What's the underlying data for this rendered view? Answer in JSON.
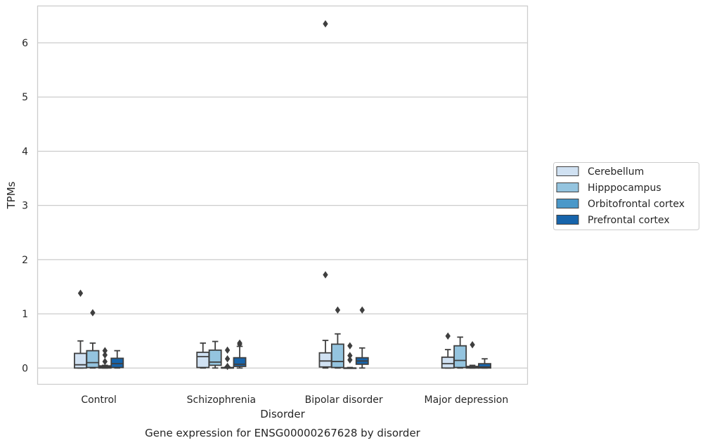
{
  "chart_data": {
    "type": "box",
    "caption": "Gene expression for ENSG00000267628 by disorder",
    "xlabel": "Disorder",
    "ylabel": "TPMs",
    "ylim": [
      -0.3,
      6.68
    ],
    "yticks": [
      0,
      1,
      2,
      3,
      4,
      5,
      6
    ],
    "grid": "horizontal",
    "legend_position": "right",
    "categories": [
      "Control",
      "Schizophrenia",
      "Bipolar disorder",
      "Major depression"
    ],
    "series": [
      {
        "name": "Cerebellum",
        "color": "#d0e1f2",
        "boxes": [
          {
            "whislo": 0.0,
            "q1": 0.0,
            "med": 0.06,
            "q3": 0.27,
            "whishi": 0.5,
            "fliers": [
              1.38
            ]
          },
          {
            "whislo": 0.0,
            "q1": 0.01,
            "med": 0.21,
            "q3": 0.29,
            "whishi": 0.46,
            "fliers": []
          },
          {
            "whislo": 0.0,
            "q1": 0.02,
            "med": 0.13,
            "q3": 0.28,
            "whishi": 0.51,
            "fliers": [
              1.72,
              6.35
            ]
          },
          {
            "whislo": 0.0,
            "q1": 0.0,
            "med": 0.08,
            "q3": 0.2,
            "whishi": 0.34,
            "fliers": [
              0.59
            ]
          }
        ]
      },
      {
        "name": "Hipppocampus",
        "color": "#94c4df",
        "boxes": [
          {
            "whislo": 0.0,
            "q1": 0.01,
            "med": 0.1,
            "q3": 0.32,
            "whishi": 0.46,
            "fliers": [
              1.02
            ]
          },
          {
            "whislo": 0.0,
            "q1": 0.05,
            "med": 0.11,
            "q3": 0.33,
            "whishi": 0.49,
            "fliers": []
          },
          {
            "whislo": 0.0,
            "q1": 0.01,
            "med": 0.12,
            "q3": 0.44,
            "whishi": 0.63,
            "fliers": [
              1.07
            ]
          },
          {
            "whislo": 0.0,
            "q1": 0.01,
            "med": 0.14,
            "q3": 0.41,
            "whishi": 0.57,
            "fliers": []
          }
        ]
      },
      {
        "name": "Orbitofrontal cortex",
        "color": "#4a98c9",
        "boxes": [
          {
            "whislo": 0.0,
            "q1": 0.0,
            "med": 0.02,
            "q3": 0.04,
            "whishi": 0.05,
            "fliers": [
              0.12,
              0.24,
              0.32
            ]
          },
          {
            "whislo": 0.0,
            "q1": 0.0,
            "med": 0.0,
            "q3": 0.01,
            "whishi": 0.02,
            "fliers": [
              0.03,
              0.17,
              0.33
            ]
          },
          {
            "whislo": 0.0,
            "q1": 0.0,
            "med": 0.0,
            "q3": 0.0,
            "whishi": 0.01,
            "fliers": [
              0.15,
              0.23,
              0.41
            ]
          },
          {
            "whislo": 0.0,
            "q1": 0.0,
            "med": 0.01,
            "q3": 0.03,
            "whishi": 0.05,
            "fliers": [
              0.43
            ]
          }
        ]
      },
      {
        "name": "Prefrontal cortex",
        "color": "#1764ab",
        "boxes": [
          {
            "whislo": 0.0,
            "q1": 0.01,
            "med": 0.08,
            "q3": 0.18,
            "whishi": 0.32,
            "fliers": []
          },
          {
            "whislo": 0.0,
            "q1": 0.03,
            "med": 0.07,
            "q3": 0.19,
            "whishi": 0.4,
            "fliers": [
              0.44,
              0.46
            ]
          },
          {
            "whislo": 0.0,
            "q1": 0.07,
            "med": 0.13,
            "q3": 0.19,
            "whishi": 0.37,
            "fliers": [
              1.07
            ]
          },
          {
            "whislo": 0.0,
            "q1": 0.0,
            "med": 0.02,
            "q3": 0.08,
            "whishi": 0.17,
            "fliers": []
          }
        ]
      }
    ]
  }
}
